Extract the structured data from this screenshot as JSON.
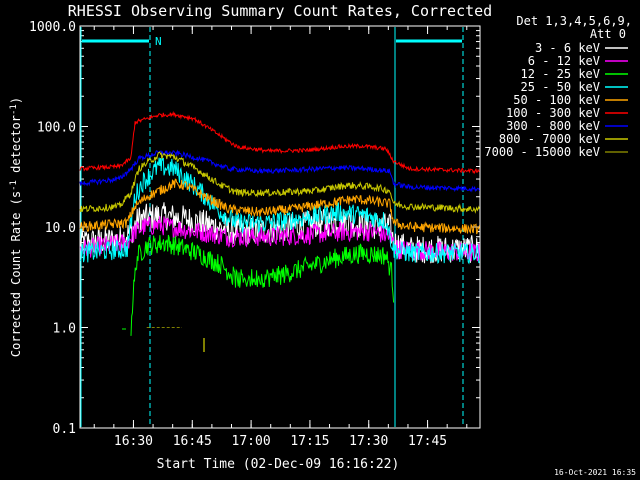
{
  "chart_data": {
    "type": "line",
    "title": "RHESSI Observing Summary Count Rates, Corrected",
    "xlabel": "Start Time (02-Dec-09 16:16:22)",
    "ylabel_main": "Corrected Count Rate (s",
    "ylabel_sup1": "-1",
    "ylabel_mid": " detector",
    "ylabel_sup2": "-1",
    "ylabel_end": ")",
    "x_range_min": [
      0,
      102
    ],
    "y_range_log": [
      0.1,
      1000
    ],
    "y_ticks": [
      {
        "v": 0.1,
        "label": "0.1"
      },
      {
        "v": 1,
        "label": "1.0"
      },
      {
        "v": 10,
        "label": "10.0"
      },
      {
        "v": 100,
        "label": "100.0"
      },
      {
        "v": 1000,
        "label": "1000.0"
      }
    ],
    "x_ticks": [
      {
        "t": 13.63,
        "label": "16:30"
      },
      {
        "t": 28.63,
        "label": "16:45"
      },
      {
        "t": 43.63,
        "label": "17:00"
      },
      {
        "t": 58.63,
        "label": "17:15"
      },
      {
        "t": 73.63,
        "label": "17:30"
      },
      {
        "t": 88.63,
        "label": "17:45"
      }
    ],
    "legend_header": [
      "Det 1,3,4,5,6,9,",
      "Att 0"
    ],
    "legend_placement": "top-right outside plot",
    "series": [
      {
        "name": "3 - 6 keV",
        "color": "#ffffff",
        "points": [
          [
            0,
            7
          ],
          [
            10,
            7.5
          ],
          [
            13,
            9
          ],
          [
            15,
            12
          ],
          [
            20,
            13
          ],
          [
            27,
            12
          ],
          [
            33,
            10.5
          ],
          [
            40,
            9
          ],
          [
            50,
            9.5
          ],
          [
            58,
            10.5
          ],
          [
            66,
            11.5
          ],
          [
            73,
            10.5
          ],
          [
            79,
            10
          ],
          [
            80,
            7
          ],
          [
            84,
            6
          ],
          [
            102,
            6
          ]
        ]
      },
      {
        "name": "6 - 12 keV",
        "color": "#ff00ff",
        "points": [
          [
            0,
            6
          ],
          [
            12,
            7
          ],
          [
            14,
            9
          ],
          [
            16,
            10
          ],
          [
            20,
            10.5
          ],
          [
            30,
            9
          ],
          [
            38,
            8
          ],
          [
            50,
            8
          ],
          [
            60,
            8.5
          ],
          [
            68,
            9
          ],
          [
            75,
            9
          ],
          [
            79,
            8
          ],
          [
            81,
            6
          ],
          [
            102,
            5.5
          ]
        ]
      },
      {
        "name": "12 - 25 keV",
        "color": "#00ff00",
        "points": [
          [
            13,
            1
          ],
          [
            13.5,
            2
          ],
          [
            14.5,
            5
          ],
          [
            17,
            6.5
          ],
          [
            22,
            7
          ],
          [
            30,
            5.5
          ],
          [
            36,
            4.2
          ],
          [
            40,
            3
          ],
          [
            50,
            3.2
          ],
          [
            58,
            4
          ],
          [
            66,
            5
          ],
          [
            72,
            5.5
          ],
          [
            78,
            5.2
          ],
          [
            79.5,
            3.5
          ],
          [
            80,
            2
          ]
        ]
      },
      {
        "name": "25 - 50 keV",
        "color": "#00ffff",
        "points": [
          [
            0,
            5.5
          ],
          [
            12,
            6
          ],
          [
            14,
            20
          ],
          [
            16,
            28
          ],
          [
            20,
            40
          ],
          [
            24,
            38
          ],
          [
            30,
            24
          ],
          [
            36,
            14
          ],
          [
            40,
            11
          ],
          [
            48,
            11
          ],
          [
            58,
            12.5
          ],
          [
            66,
            14
          ],
          [
            73,
            13
          ],
          [
            78,
            11.5
          ],
          [
            80,
            6
          ],
          [
            84,
            5.5
          ],
          [
            102,
            5.5
          ]
        ]
      },
      {
        "name": "50 - 100 keV",
        "color": "#ffa500",
        "points": [
          [
            0,
            10
          ],
          [
            12,
            11
          ],
          [
            14,
            16
          ],
          [
            17,
            20
          ],
          [
            24,
            27
          ],
          [
            27,
            26
          ],
          [
            33,
            19
          ],
          [
            38,
            15
          ],
          [
            46,
            14
          ],
          [
            54,
            15
          ],
          [
            62,
            17
          ],
          [
            70,
            19
          ],
          [
            75,
            18
          ],
          [
            79,
            17
          ],
          [
            80,
            11
          ],
          [
            84,
            10
          ],
          [
            102,
            9.5
          ]
        ]
      },
      {
        "name": "100 - 300 keV",
        "color": "#ff0000",
        "points": [
          [
            0,
            38
          ],
          [
            10,
            40
          ],
          [
            13,
            48
          ],
          [
            14,
            110
          ],
          [
            20,
            130
          ],
          [
            24,
            132
          ],
          [
            29,
            120
          ],
          [
            34,
            90
          ],
          [
            40,
            63
          ],
          [
            48,
            57
          ],
          [
            58,
            58
          ],
          [
            66,
            63
          ],
          [
            72,
            64
          ],
          [
            78,
            60
          ],
          [
            80,
            45
          ],
          [
            84,
            38
          ],
          [
            102,
            36
          ]
        ]
      },
      {
        "name": "300 - 800 keV",
        "color": "#0000ff",
        "points": [
          [
            0,
            27
          ],
          [
            10,
            30
          ],
          [
            13,
            38
          ],
          [
            15,
            48
          ],
          [
            20,
            55
          ],
          [
            25,
            54
          ],
          [
            32,
            46
          ],
          [
            38,
            38
          ],
          [
            46,
            36
          ],
          [
            56,
            37
          ],
          [
            66,
            39
          ],
          [
            73,
            38
          ],
          [
            79,
            36
          ],
          [
            80,
            27
          ],
          [
            84,
            25
          ],
          [
            102,
            24
          ]
        ]
      },
      {
        "name": "800 - 7000 keV",
        "color": "#c8c800",
        "points": [
          [
            0,
            15
          ],
          [
            10,
            16
          ],
          [
            13,
            22
          ],
          [
            15,
            38
          ],
          [
            20,
            52
          ],
          [
            24,
            50
          ],
          [
            30,
            37
          ],
          [
            36,
            26
          ],
          [
            40,
            22
          ],
          [
            50,
            22
          ],
          [
            60,
            23
          ],
          [
            68,
            26
          ],
          [
            75,
            25
          ],
          [
            79,
            23
          ],
          [
            80,
            17
          ],
          [
            84,
            16
          ],
          [
            102,
            15
          ]
        ]
      },
      {
        "name": "7000 - 15000 keV",
        "color": "#808000",
        "points": [
          [
            17,
            1
          ],
          [
            26,
            1
          ]
        ]
      }
    ],
    "attenuator_state_label": "N",
    "footer_timestamp": "16-Oct-2021 16:35"
  }
}
